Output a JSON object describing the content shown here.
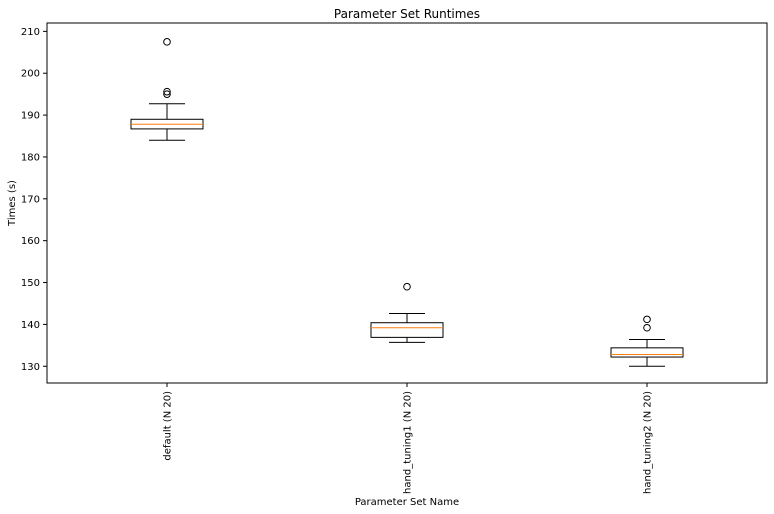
{
  "chart_data": {
    "type": "boxplot",
    "title": "Parameter Set Runtimes",
    "xlabel": "Parameter Set Name",
    "ylabel": "Times (s)",
    "ylim": [
      126,
      212
    ],
    "yticks": [
      130,
      140,
      150,
      160,
      170,
      180,
      190,
      200,
      210
    ],
    "grid": false,
    "colors": {
      "box": "#000000",
      "median": "#ff7f0e",
      "outlier": "#000000"
    },
    "categories": [
      "default (N 20)",
      "hand_tuning1 (N 20)",
      "hand_tuning2 (N 20)"
    ],
    "boxes": [
      {
        "whislo": 184.0,
        "q1": 186.7,
        "med": 187.8,
        "q3": 189.0,
        "whishi": 192.7,
        "fliers": [
          195.0,
          195.6,
          207.5
        ]
      },
      {
        "whislo": 135.7,
        "q1": 136.9,
        "med": 139.2,
        "q3": 140.4,
        "whishi": 142.6,
        "fliers": [
          149.0
        ]
      },
      {
        "whislo": 130.0,
        "q1": 132.2,
        "med": 132.8,
        "q3": 134.4,
        "whishi": 136.4,
        "fliers": [
          139.2,
          141.2
        ]
      }
    ]
  }
}
